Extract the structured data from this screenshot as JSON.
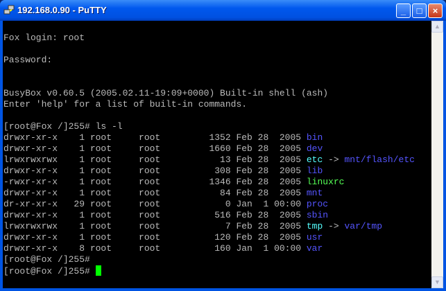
{
  "window": {
    "title": "192.168.0.90 - PuTTY",
    "minimize": "_",
    "maximize": "□",
    "close": "×"
  },
  "colors": {
    "n": "#bbbbbb",
    "b": "#5555ff",
    "c": "#55ffff",
    "g": "#55ff55",
    "cursor": "#00ff00"
  },
  "scrollbar": {
    "up": "▲",
    "down": "▼"
  },
  "terminal": {
    "lines": [
      [],
      [
        {
          "t": "Fox login: root",
          "c": "n"
        }
      ],
      [],
      [
        {
          "t": "Password:",
          "c": "n"
        }
      ],
      [],
      [],
      [
        {
          "t": "BusyBox v0.60.5 (2005.02.11-19:09+0000) Built-in shell (ash)",
          "c": "n"
        }
      ],
      [
        {
          "t": "Enter 'help' for a list of built-in commands.",
          "c": "n"
        }
      ],
      [],
      [
        {
          "t": "[root@Fox /]255# ls -l",
          "c": "n"
        }
      ],
      [
        {
          "t": "drwxr-xr-x    1 root     root         1352 Feb 28  2005 ",
          "c": "n"
        },
        {
          "t": "bin",
          "c": "b"
        }
      ],
      [
        {
          "t": "drwxr-xr-x    1 root     root         1660 Feb 28  2005 ",
          "c": "n"
        },
        {
          "t": "dev",
          "c": "b"
        }
      ],
      [
        {
          "t": "lrwxrwxrwx    1 root     root           13 Feb 28  2005 ",
          "c": "n"
        },
        {
          "t": "etc",
          "c": "c"
        },
        {
          "t": " -> ",
          "c": "n"
        },
        {
          "t": "mnt/flash/etc",
          "c": "b"
        }
      ],
      [
        {
          "t": "drwxr-xr-x    1 root     root          308 Feb 28  2005 ",
          "c": "n"
        },
        {
          "t": "lib",
          "c": "b"
        }
      ],
      [
        {
          "t": "-rwxr-xr-x    1 root     root         1346 Feb 28  2005 ",
          "c": "n"
        },
        {
          "t": "linuxrc",
          "c": "g"
        }
      ],
      [
        {
          "t": "drwxr-xr-x    1 root     root           84 Feb 28  2005 ",
          "c": "n"
        },
        {
          "t": "mnt",
          "c": "b"
        }
      ],
      [
        {
          "t": "dr-xr-xr-x   29 root     root            0 Jan  1 00:00 ",
          "c": "n"
        },
        {
          "t": "proc",
          "c": "b"
        }
      ],
      [
        {
          "t": "drwxr-xr-x    1 root     root          516 Feb 28  2005 ",
          "c": "n"
        },
        {
          "t": "sbin",
          "c": "b"
        }
      ],
      [
        {
          "t": "lrwxrwxrwx    1 root     root            7 Feb 28  2005 ",
          "c": "n"
        },
        {
          "t": "tmp",
          "c": "c"
        },
        {
          "t": " -> ",
          "c": "n"
        },
        {
          "t": "var/tmp",
          "c": "b"
        }
      ],
      [
        {
          "t": "drwxr-xr-x    1 root     root          120 Feb 28  2005 ",
          "c": "n"
        },
        {
          "t": "usr",
          "c": "b"
        }
      ],
      [
        {
          "t": "drwxr-xr-x    8 root     root          160 Jan  1 00:00 ",
          "c": "n"
        },
        {
          "t": "var",
          "c": "b"
        }
      ],
      [
        {
          "t": "[root@Fox /]255#",
          "c": "n"
        }
      ],
      [
        {
          "t": "[root@Fox /]255# ",
          "c": "n"
        }
      ]
    ]
  }
}
